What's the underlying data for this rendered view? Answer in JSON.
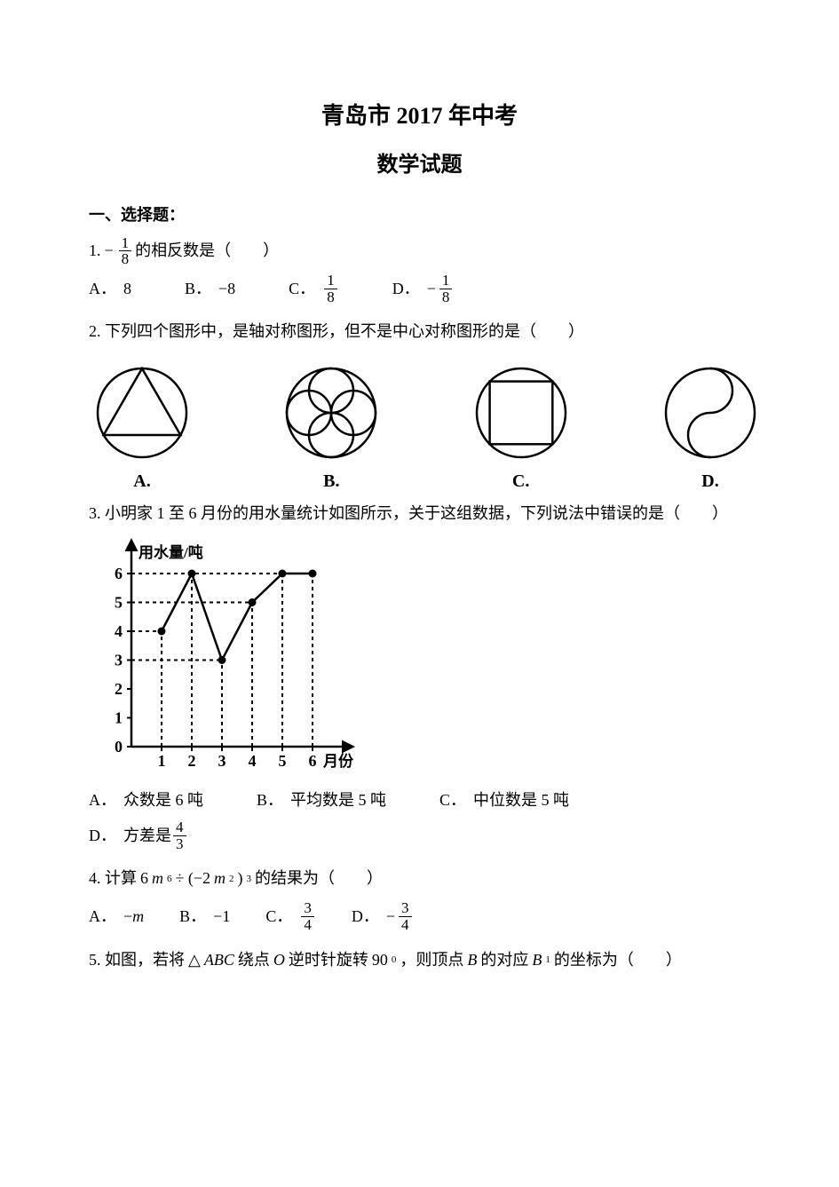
{
  "title": "青岛市 2017 年中考",
  "subtitle": "数学试题",
  "section1": "一、选择题：",
  "q1": {
    "num": "1.",
    "neg": "−",
    "frac_n": "1",
    "frac_d": "8",
    "tail": " 的相反数是（　　）",
    "A_lab": "A．",
    "A": "8",
    "B_lab": "B．",
    "B": "−8",
    "C_lab": "C．",
    "C_n": "1",
    "C_d": "8",
    "D_lab": "D．",
    "D_neg": "−",
    "D_n": "1",
    "D_d": "8"
  },
  "q2": {
    "text": "2. 下列四个图形中，是轴对称图形，但不是中心对称图形的是（　　）",
    "labA": "A.",
    "labB": "B.",
    "labC": "C.",
    "labD": "D."
  },
  "q3": {
    "text": "3. 小明家 1 至 6 月份的用水量统计如图所示，关于这组数据，下列说法中错误的是（　　）",
    "ylabel": "用水量/吨",
    "xlabel": "月份",
    "yticks": [
      "0",
      "1",
      "2",
      "3",
      "4",
      "5",
      "6"
    ],
    "xticks": [
      "1",
      "2",
      "3",
      "4",
      "5",
      "6"
    ],
    "values": [
      4,
      6,
      3,
      5,
      6,
      6
    ],
    "A_lab": "A．",
    "A": "众数是 6 吨",
    "B_lab": "B．",
    "B": "平均数是 5 吨",
    "C_lab": "C．",
    "C": "中位数是 5 吨",
    "D_lab": "D．",
    "D_pre": "方差是",
    "D_n": "4",
    "D_d": "3"
  },
  "q4": {
    "pre": "4. 计算 ",
    "expr_a": "6",
    "expr_m": "m",
    "expr_e1": "6",
    "expr_div": " ÷ (−2",
    "expr_m2": "m",
    "expr_e2": "2",
    "expr_close": ")",
    "expr_e3": "3",
    "tail": " 的结果为（　　）",
    "A_lab": "A．",
    "A_neg": "−",
    "A_m": "m",
    "B_lab": "B．",
    "B": "−1",
    "C_lab": "C．",
    "C_n": "3",
    "C_d": "4",
    "D_lab": "D．",
    "D_neg": "−",
    "D_n": "3",
    "D_d": "4"
  },
  "q5": {
    "p1": "5. 如图，若将 ",
    "tri": "△",
    "abc": "ABC",
    "p2": " 绕点 ",
    "O": "O",
    "p3": " 逆时针旋转 ",
    "ang": "90",
    "deg": "0",
    "p4": "，则顶点 ",
    "B": "B",
    "p5": " 的对应 ",
    "B1": "B",
    "B1s": "1",
    "p6": " 的坐标为（　　）"
  },
  "style": {
    "stroke": "#000000",
    "stroke_w": 2.5,
    "dash": "4,4"
  }
}
